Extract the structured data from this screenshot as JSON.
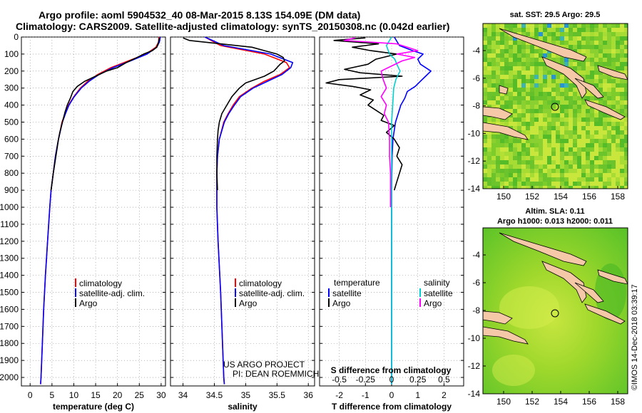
{
  "header": {
    "line1": "Argo profile: aoml 5904532_40 08-Mar-2015 8.13S 154.09E (DM data)",
    "line2": "Climatology: CARS2009. Satellite-adjusted climatology: synTS_20150308.nc (0.042d earlier)"
  },
  "colors": {
    "climatology": "#ff0000",
    "satellite": "#0000ff",
    "argo": "#000000",
    "satellite_s": "#00d0d0",
    "argo_s": "#ff00ff",
    "land": "#f5c8a8"
  },
  "chart_data": [
    {
      "type": "line",
      "name": "temperature",
      "xlabel": "temperature (deg C)",
      "ylabel": "depth",
      "xlim": [
        -2,
        31
      ],
      "ylim": [
        2050,
        0
      ],
      "xticks": [
        0,
        5,
        10,
        15,
        20,
        25,
        30
      ],
      "yticks": [
        0,
        100,
        200,
        300,
        400,
        500,
        600,
        700,
        800,
        900,
        1000,
        1100,
        1200,
        1300,
        1400,
        1500,
        1600,
        1700,
        1800,
        1900,
        2000
      ],
      "legend": [
        "climatology",
        "satellite-adj. clim.",
        "Argo"
      ],
      "legend_position": "bottom-right",
      "series": [
        {
          "name": "climatology",
          "color": "#ff0000",
          "depth": [
            0,
            30,
            60,
            100,
            140,
            180,
            220,
            260,
            300,
            350,
            400,
            450,
            500,
            600,
            700,
            800,
            900,
            1000,
            1200,
            1400,
            1600,
            1800,
            2000,
            2040
          ],
          "values": [
            29.5,
            29.4,
            28.8,
            26.5,
            22.5,
            18.5,
            15.5,
            13.2,
            11.5,
            10.0,
            8.8,
            8.0,
            7.3,
            6.5,
            5.8,
            5.3,
            4.8,
            4.5,
            4.0,
            3.5,
            3.1,
            2.8,
            2.5,
            2.4
          ]
        },
        {
          "name": "satellite-adj. clim.",
          "color": "#0000ff",
          "depth": [
            0,
            30,
            60,
            100,
            140,
            180,
            220,
            260,
            300,
            350,
            400,
            450,
            500,
            600,
            700,
            800,
            900,
            1000,
            1200,
            1400,
            1600,
            1800,
            2000,
            2040
          ],
          "values": [
            29.8,
            29.6,
            29.0,
            26.8,
            23.0,
            19.0,
            15.8,
            13.5,
            11.7,
            10.1,
            8.9,
            8.1,
            7.4,
            6.5,
            5.8,
            5.3,
            4.8,
            4.5,
            4.0,
            3.5,
            3.1,
            2.8,
            2.5,
            2.4
          ]
        },
        {
          "name": "Argo",
          "color": "#000000",
          "depth": [
            5,
            20,
            40,
            60,
            80,
            100,
            120,
            150,
            180,
            200,
            230,
            260,
            290,
            320,
            360,
            400,
            440,
            480,
            520,
            560,
            600,
            700,
            800,
            900
          ],
          "values": [
            29.6,
            29.5,
            29.3,
            29.0,
            28.0,
            26.0,
            24.5,
            22.0,
            20.0,
            17.5,
            15.0,
            12.5,
            10.8,
            9.8,
            9.2,
            8.5,
            8.0,
            7.6,
            7.2,
            6.8,
            6.5,
            5.9,
            5.3,
            4.8
          ]
        }
      ]
    },
    {
      "type": "line",
      "name": "salinity",
      "xlabel": "salinity",
      "xlim": [
        33.8,
        36.1
      ],
      "ylim": [
        2050,
        0
      ],
      "xticks": [
        34,
        34.5,
        35,
        35.5,
        36
      ],
      "legend": [
        "climatology",
        "satellite-adj. clim.",
        "Argo"
      ],
      "legend_position": "bottom-right",
      "annotation": [
        "US ARGO PROJECT",
        "PI: DEAN ROEMMICH"
      ],
      "series": [
        {
          "name": "climatology",
          "color": "#ff0000",
          "depth": [
            0,
            50,
            100,
            150,
            180,
            220,
            260,
            300,
            350,
            400,
            450,
            500,
            600,
            700,
            800,
            1000,
            1200,
            1500,
            2000,
            2040
          ],
          "values": [
            34.35,
            34.6,
            35.3,
            35.65,
            35.7,
            35.55,
            35.3,
            35.1,
            34.9,
            34.8,
            34.72,
            34.65,
            34.58,
            34.55,
            34.54,
            34.54,
            34.56,
            34.6,
            34.65,
            34.66
          ]
        },
        {
          "name": "satellite-adj. clim.",
          "color": "#0000ff",
          "depth": [
            0,
            50,
            100,
            150,
            180,
            220,
            260,
            300,
            350,
            400,
            450,
            500,
            600,
            700,
            800,
            1000,
            1200,
            1500,
            2000,
            2040
          ],
          "values": [
            34.35,
            34.65,
            35.4,
            35.75,
            35.72,
            35.58,
            35.35,
            35.12,
            34.92,
            34.82,
            34.73,
            34.66,
            34.58,
            34.55,
            34.54,
            34.54,
            34.56,
            34.6,
            34.65,
            34.66
          ]
        },
        {
          "name": "Argo",
          "color": "#000000",
          "depth": [
            5,
            20,
            40,
            60,
            80,
            100,
            120,
            140,
            160,
            180,
            200,
            230,
            270,
            300,
            350,
            400,
            450,
            500,
            550,
            600,
            700,
            800,
            900
          ],
          "values": [
            34.0,
            34.1,
            34.6,
            35.1,
            35.3,
            35.5,
            35.6,
            35.62,
            35.55,
            35.5,
            35.45,
            35.3,
            35.0,
            34.9,
            34.78,
            34.7,
            34.62,
            34.58,
            34.56,
            34.55,
            34.54,
            34.54,
            34.55
          ]
        }
      ]
    },
    {
      "type": "line",
      "name": "difference",
      "xlabel": "T difference from climatology",
      "xlabel_top": "S difference from climatology",
      "xlim": [
        -2.75,
        2.75
      ],
      "ylim": [
        2050,
        0
      ],
      "xticks": [
        -2,
        -1,
        0,
        1,
        2
      ],
      "xticklabels": [
        "-2",
        "-1",
        "0",
        "1",
        "2"
      ],
      "sticks": [
        -0.5,
        -0.25,
        0,
        0.25,
        0.5
      ],
      "sticklabels": [
        "-0.5",
        "-0.25",
        "0",
        "0.25",
        "0.5"
      ],
      "legend_left_title": "temperature",
      "legend_right_title": "salinity",
      "legend_left": [
        "satellite",
        "Argo"
      ],
      "legend_right": [
        "satellite",
        "Argo"
      ],
      "series": [
        {
          "name": "T satellite",
          "color": "#0000ff",
          "depth": [
            0,
            50,
            80,
            100,
            130,
            160,
            200,
            230,
            260,
            290,
            320,
            360,
            400,
            450,
            500,
            600,
            700,
            900,
            1200,
            2000,
            2040
          ],
          "values": [
            0.1,
            0.3,
            0.8,
            1.2,
            1.0,
            1.1,
            1.5,
            1.3,
            1.1,
            0.9,
            0.6,
            0.5,
            0.35,
            0.25,
            0.15,
            0.05,
            0.02,
            0.0,
            0.0,
            0.0,
            0.0
          ]
        },
        {
          "name": "T Argo",
          "color": "#000000",
          "depth": [
            5,
            20,
            40,
            60,
            80,
            100,
            130,
            160,
            190,
            210,
            230,
            250,
            270,
            290,
            310,
            340,
            370,
            400,
            430,
            460,
            490,
            520,
            560,
            600,
            650,
            700,
            750,
            800,
            850,
            900
          ],
          "values": [
            -1.0,
            -2.2,
            -0.5,
            -1.5,
            -0.8,
            0.2,
            -0.6,
            -0.9,
            -1.8,
            -1.2,
            0.4,
            -2.0,
            -2.5,
            -1.5,
            -0.8,
            -1.2,
            -0.7,
            -0.9,
            -0.6,
            -0.3,
            -0.4,
            0.1,
            -0.2,
            0.1,
            0.3,
            0.2,
            0.4,
            0.3,
            0.2,
            0.1
          ]
        },
        {
          "name": "S satellite",
          "color": "#00d0d0",
          "depth": [
            0,
            50,
            100,
            130,
            160,
            200,
            250,
            300,
            400,
            500,
            700,
            1000,
            1500,
            2000,
            2040
          ],
          "values": [
            0.0,
            -0.05,
            -0.02,
            0.03,
            0.05,
            0.08,
            0.04,
            0.02,
            0.01,
            0.0,
            0.0,
            0.0,
            0.0,
            0.0,
            0.0
          ]
        },
        {
          "name": "S Argo",
          "color": "#ff00ff",
          "depth": [
            5,
            20,
            40,
            60,
            80,
            100,
            120,
            140,
            170,
            200,
            250,
            300,
            350,
            400,
            450,
            500,
            600,
            700,
            800,
            900,
            1000
          ],
          "values": [
            -0.35,
            -0.45,
            0.05,
            0.15,
            0.25,
            0.05,
            0.22,
            0.1,
            0.0,
            -0.1,
            -0.08,
            -0.05,
            -0.1,
            -0.05,
            -0.07,
            -0.03,
            -0.02,
            -0.02,
            -0.01,
            -0.01,
            -0.01
          ]
        }
      ]
    }
  ],
  "maps": {
    "sst": {
      "title": "sat. SST: 29.5 Argo: 29.5",
      "yticks": [
        "-4",
        "-6",
        "-8",
        "-10",
        "-12",
        "-14"
      ],
      "xticks": [
        "150",
        "152",
        "154",
        "156",
        "158"
      ]
    },
    "sla": {
      "title_line1": "Altim. SLA: 0.11",
      "title_line2": "Argo h1000: 0.013 h2000: 0.011",
      "yticks": [
        "-4",
        "-6",
        "-8",
        "-10",
        "-12",
        "-14"
      ],
      "xticks": [
        "150",
        "152",
        "154",
        "156",
        "158"
      ]
    }
  },
  "credit": "©IMOS 14-Dec-2018 03:39:17"
}
